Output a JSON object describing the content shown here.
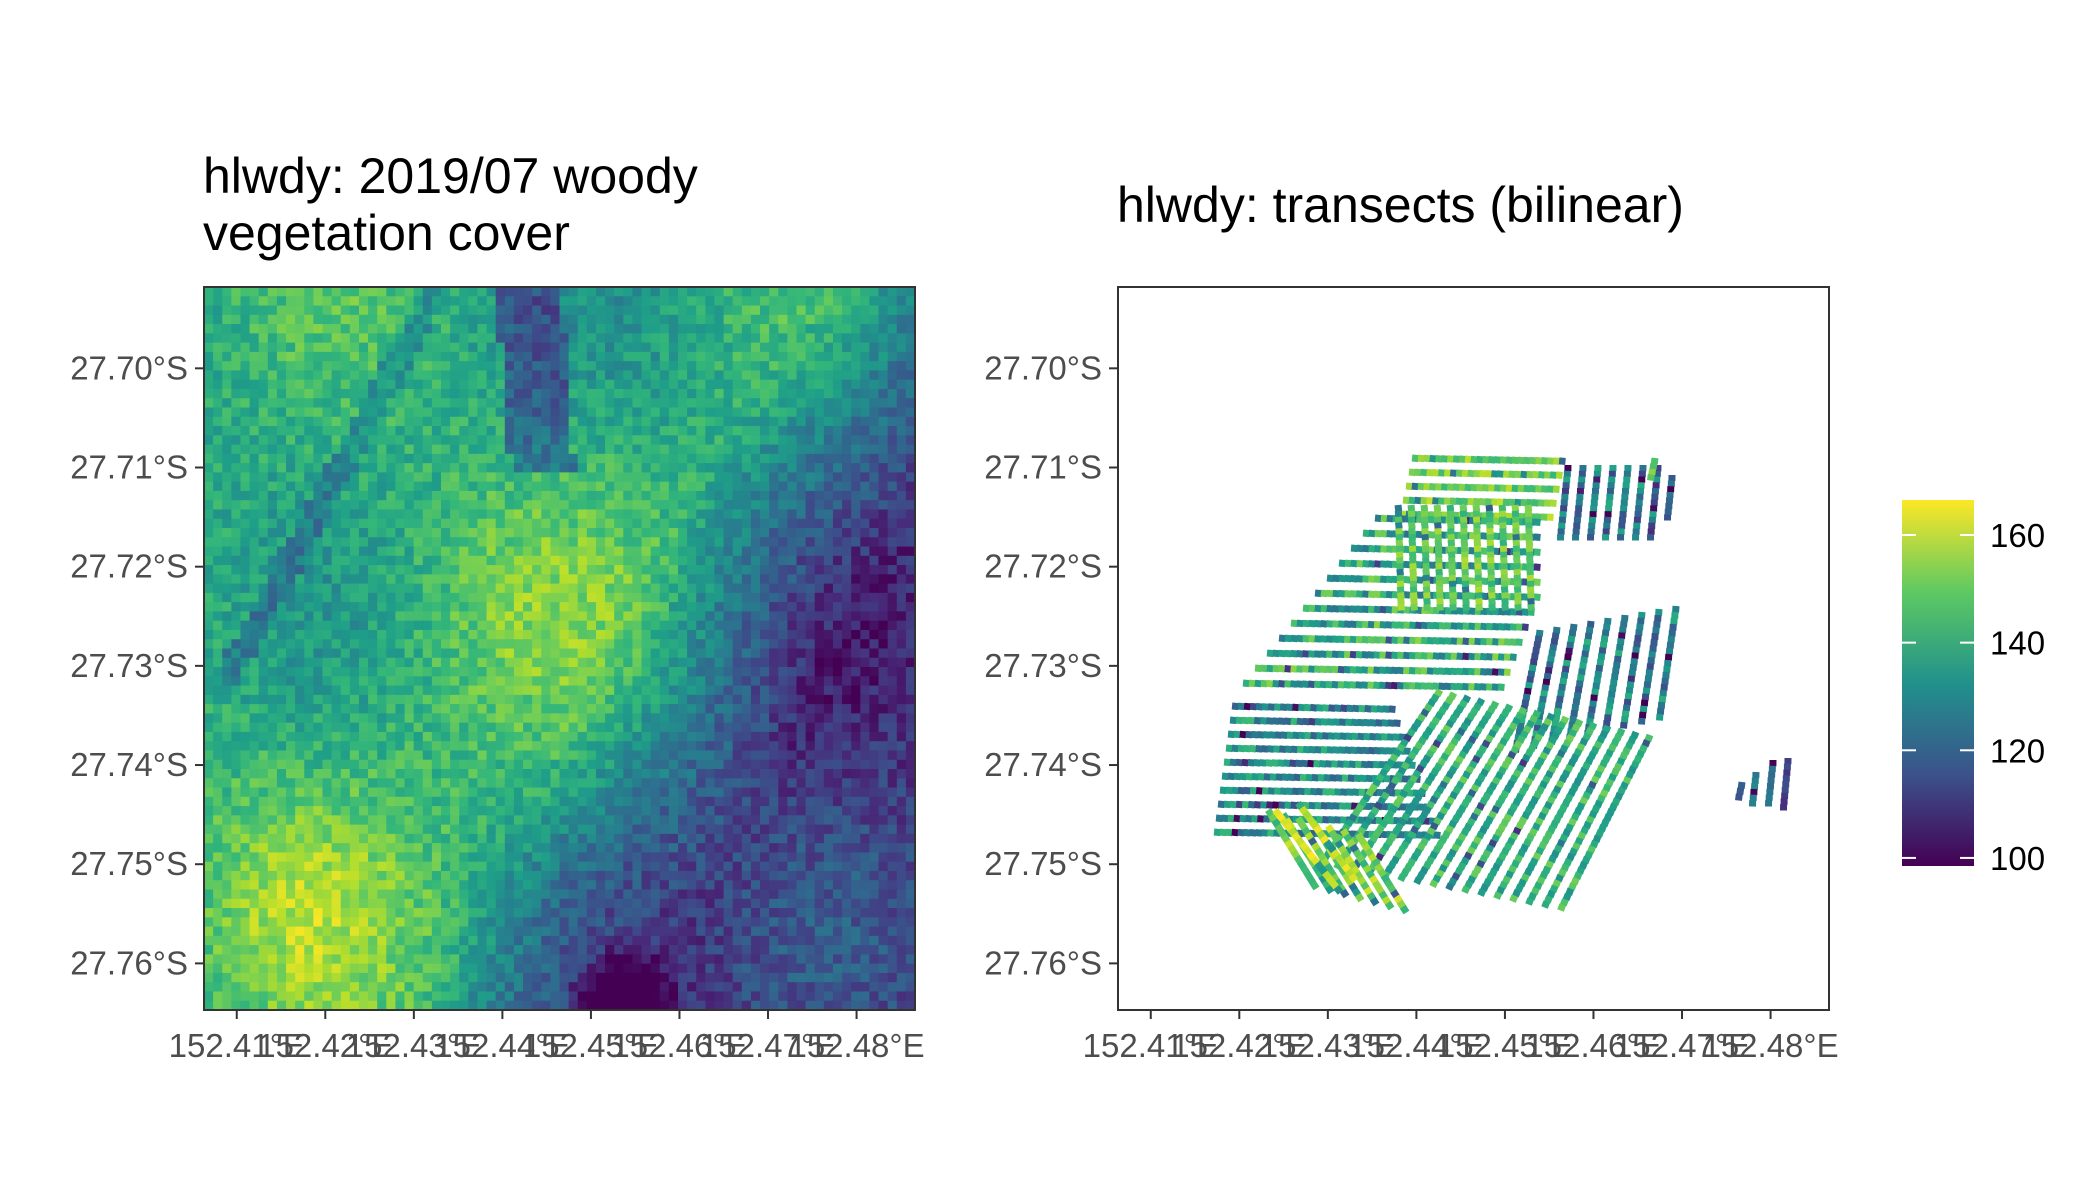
{
  "chart_data": [
    {
      "type": "heatmap",
      "title_lines": [
        "hlwdy: 2019/07 woody",
        "vegetation cover"
      ],
      "x_ticks": [
        152.41,
        152.42,
        152.43,
        152.44,
        152.45,
        152.46,
        152.47,
        152.48
      ],
      "x_tick_labels": [
        "152.41°E",
        "152.42°E",
        "152.43°E",
        "152.44°E",
        "152.45°E",
        "152.46°E",
        "152.47°E",
        "152.48°E"
      ],
      "y_ticks": [
        27.7,
        27.71,
        27.72,
        27.73,
        27.74,
        27.75,
        27.76
      ],
      "y_tick_labels": [
        "27.70°S",
        "27.71°S",
        "27.72°S",
        "27.73°S",
        "27.74°S",
        "27.75°S",
        "27.76°S"
      ],
      "xlim": [
        152.4063,
        152.4866
      ],
      "ylim_south": [
        27.6918,
        27.7647
      ],
      "value_range": [
        100,
        166
      ]
    },
    {
      "type": "scatter",
      "title": "hlwdy: transects (bilinear)",
      "x_ticks": [
        152.41,
        152.42,
        152.43,
        152.44,
        152.45,
        152.46,
        152.47,
        152.48
      ],
      "x_tick_labels": [
        "152.41°E",
        "152.42°E",
        "152.43°E",
        "152.44°E",
        "152.45°E",
        "152.46°E",
        "152.47°E",
        "152.48°E"
      ],
      "y_ticks": [
        27.7,
        27.71,
        27.72,
        27.73,
        27.74,
        27.75,
        27.76
      ],
      "y_tick_labels": [
        "27.70°S",
        "27.71°S",
        "27.72°S",
        "27.73°S",
        "27.74°S",
        "27.75°S",
        "27.76°S"
      ],
      "xlim": [
        152.4063,
        152.4866
      ],
      "ylim_south": [
        27.6918,
        27.7647
      ],
      "value_range": [
        100,
        166
      ]
    }
  ],
  "legend": {
    "ticks": [
      100,
      120,
      140,
      160
    ],
    "tick_labels": [
      "100",
      "120",
      "140",
      "160"
    ],
    "range": [
      98.5,
      166.5
    ],
    "colors": [
      "#440154",
      "#3b528b",
      "#21918c",
      "#5ec962",
      "#fde725"
    ]
  }
}
